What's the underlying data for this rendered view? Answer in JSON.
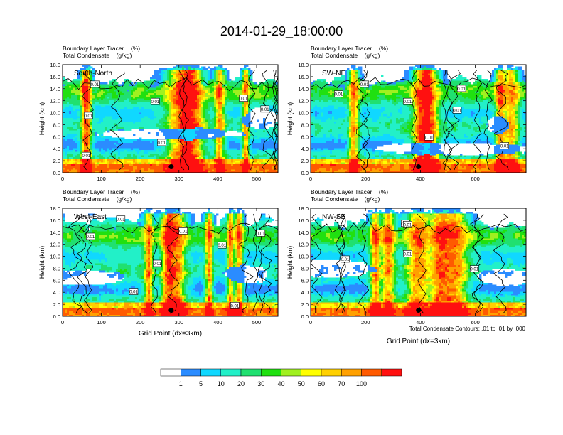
{
  "figure": {
    "title": "2014-01-29_18:00:00",
    "contour_note": "Total Condensate Contours: .01 to .01 by .000"
  },
  "colorbar": {
    "colors": [
      "#ffffff",
      "#2b8cff",
      "#10d8ff",
      "#22f0c8",
      "#20e070",
      "#20e010",
      "#a0f020",
      "#ffff00",
      "#ffd000",
      "#ffa000",
      "#ff5a00",
      "#ff1010"
    ],
    "labels": [
      "1",
      "5",
      "10",
      "20",
      "30",
      "40",
      "50",
      "60",
      "70",
      "100"
    ]
  },
  "chart_data": [
    {
      "type": "heatmap",
      "panel_label": "South-North",
      "title_line1": "Boundary Layer Tracer    (%)",
      "title_line2": "Total Condensate    (g/kg)",
      "ylabel": "Height (km)",
      "xlabel": "",
      "xlim": [
        0,
        555
      ],
      "ylim": [
        0,
        18
      ],
      "xticks": [
        "0",
        "100",
        "200",
        "300",
        "400",
        "500"
      ],
      "yticks": [
        "0.0",
        "2.0",
        "4.0",
        "6.0",
        "8.0",
        "10.0",
        "12.0",
        "14.0",
        "16.0",
        "18.0"
      ],
      "contour_labels": [
        "0.01",
        "0.01",
        "0.01",
        "0.01",
        "0.01",
        "0.01",
        "0.01"
      ],
      "marker_x": 280,
      "marker_y": 1.0
    },
    {
      "type": "heatmap",
      "panel_label": "SW-NE",
      "title_line1": "Boundary Layer Tracer    (%)",
      "title_line2": "Total Condensate    (g/kg)",
      "ylabel": "Height (km)",
      "xlabel": "",
      "xlim": [
        0,
        785
      ],
      "ylim": [
        0,
        18
      ],
      "xticks": [
        "0",
        "200",
        "400",
        "600"
      ],
      "yticks": [
        "0.0",
        "2.0",
        "4.0",
        "6.0",
        "8.0",
        "10.0",
        "12.0",
        "14.0",
        "16.0",
        "18.0"
      ],
      "contour_labels": [
        "0.01",
        "0.01",
        "0.01",
        "0.01",
        "0.01",
        "0.01",
        "0.01"
      ],
      "marker_x": 393,
      "marker_y": 1.0
    },
    {
      "type": "heatmap",
      "panel_label": "West-East",
      "title_line1": "Boundary Layer Tracer    (%)",
      "title_line2": "Total Condensate    (g/kg)",
      "ylabel": "Height (km)",
      "xlabel": "Grid Point (dx=3km)",
      "xlim": [
        0,
        555
      ],
      "ylim": [
        0,
        18
      ],
      "xticks": [
        "0",
        "100",
        "200",
        "300",
        "400",
        "500"
      ],
      "yticks": [
        "0.0",
        "2.0",
        "4.0",
        "6.0",
        "8.0",
        "10.0",
        "12.0",
        "14.0",
        "16.0",
        "18.0"
      ],
      "contour_labels": [
        "0.01",
        "0.01",
        "0.01",
        "0.01",
        "0.01",
        "0.01",
        "0.01",
        "0.01"
      ],
      "marker_x": 280,
      "marker_y": 1.0
    },
    {
      "type": "heatmap",
      "panel_label": "NW-SE",
      "title_line1": "Boundary Layer Tracer    (%)",
      "title_line2": "Total Condensate    (g/kg)",
      "ylabel": "Height (km)",
      "xlabel": "Grid Point (dx=3km)",
      "xlim": [
        0,
        785
      ],
      "ylim": [
        0,
        18
      ],
      "xticks": [
        "0",
        "200",
        "400",
        "600"
      ],
      "yticks": [
        "0.0",
        "2.0",
        "4.0",
        "6.0",
        "8.0",
        "10.0",
        "12.0",
        "14.0",
        "16.0",
        "18.0"
      ],
      "contour_labels": [
        "0.01",
        "0.01",
        "0.01",
        "0.01",
        "0.01"
      ],
      "marker_x": 393,
      "marker_y": 1.0
    }
  ]
}
